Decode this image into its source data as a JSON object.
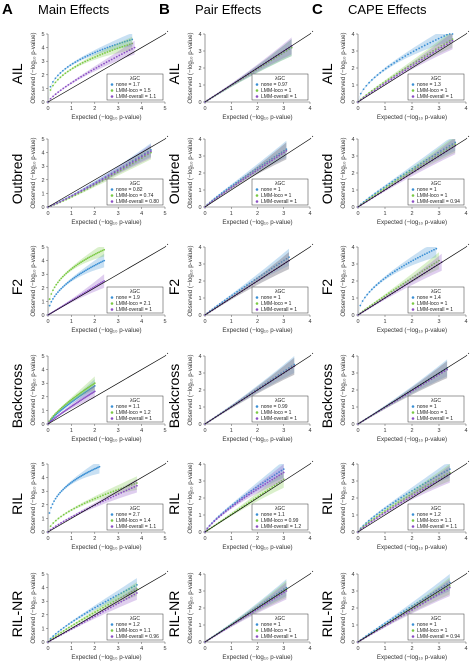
{
  "columns": [
    {
      "letter": "A",
      "title": "Main Effects"
    },
    {
      "letter": "B",
      "title": "Pair Effects"
    },
    {
      "letter": "C",
      "title": "CAPE Effects"
    }
  ],
  "rows": [
    "AIL",
    "Outbred",
    "F2",
    "Backcross",
    "RIL",
    "RIL-NR"
  ],
  "x_label": "Expected (−log₁₀ p-value)",
  "y_label": "Observed (−log₁₀ p-value)",
  "legend_title": "λGC",
  "colors": {
    "none": "#3a8fd4",
    "lmm_loco": "#7ac943",
    "lmm_overall": "#8b4fc4",
    "diag": "#000000",
    "frame": "#555555"
  },
  "chart_data": [
    {
      "type": "scatter",
      "column": "Main Effects",
      "row": "AIL",
      "xlim": [
        0,
        5
      ],
      "ylim": [
        0,
        5
      ],
      "series": [
        {
          "name": "none",
          "lambda": "1.7",
          "max_x": 3.6,
          "max_y": 4.6,
          "shape": 0.4
        },
        {
          "name": "LMM-loco",
          "lambda": "1.5",
          "max_x": 3.6,
          "max_y": 4.3,
          "shape": 0.45
        },
        {
          "name": "LMM-overall",
          "lambda": "1.1",
          "max_x": 3.7,
          "max_y": 4.0,
          "shape": 0.8
        }
      ]
    },
    {
      "type": "scatter",
      "column": "Pair Effects",
      "row": "AIL",
      "xlim": [
        0,
        4
      ],
      "ylim": [
        0,
        4
      ],
      "series": [
        {
          "name": "none",
          "lambda": "0.97",
          "max_x": 3.3,
          "max_y": 3.2,
          "shape": 1
        },
        {
          "name": "LMM-loco",
          "lambda": "1",
          "max_x": 3.3,
          "max_y": 3.2,
          "shape": 1
        },
        {
          "name": "LMM-overall",
          "lambda": "1",
          "max_x": 3.3,
          "max_y": 3.3,
          "shape": 1
        }
      ]
    },
    {
      "type": "scatter",
      "column": "CAPE Effects",
      "row": "AIL",
      "xlim": [
        0,
        4
      ],
      "ylim": [
        0,
        4
      ],
      "series": [
        {
          "name": "none",
          "lambda": "1.3",
          "max_x": 3.5,
          "max_y": 4.1,
          "shape": 0.6
        },
        {
          "name": "LMM-loco",
          "lambda": "1",
          "max_x": 3.5,
          "max_y": 3.7,
          "shape": 0.9
        },
        {
          "name": "LMM-overall",
          "lambda": "1",
          "max_x": 3.5,
          "max_y": 3.6,
          "shape": 0.95
        }
      ]
    },
    {
      "type": "scatter",
      "column": "Main Effects",
      "row": "Outbred",
      "xlim": [
        0,
        5
      ],
      "ylim": [
        0,
        5
      ],
      "series": [
        {
          "name": "none",
          "lambda": "0.82",
          "max_x": 4.4,
          "max_y": 4.2,
          "shape": 1.1
        },
        {
          "name": "LMM-loco",
          "lambda": "0.74",
          "max_x": 4.4,
          "max_y": 4.0,
          "shape": 1.15
        },
        {
          "name": "LMM-overall",
          "lambda": "0.80",
          "max_x": 4.4,
          "max_y": 4.1,
          "shape": 1.1
        }
      ]
    },
    {
      "type": "scatter",
      "column": "Pair Effects",
      "row": "Outbred",
      "xlim": [
        0,
        4
      ],
      "ylim": [
        0,
        4
      ],
      "series": [
        {
          "name": "none",
          "lambda": "1",
          "max_x": 3.1,
          "max_y": 3.4,
          "shape": 0.9
        },
        {
          "name": "LMM-loco",
          "lambda": "1",
          "max_x": 3.1,
          "max_y": 3.3,
          "shape": 0.95
        },
        {
          "name": "LMM-overall",
          "lambda": "1",
          "max_x": 3.1,
          "max_y": 3.3,
          "shape": 0.95
        }
      ]
    },
    {
      "type": "scatter",
      "column": "CAPE Effects",
      "row": "Outbred",
      "xlim": [
        0,
        4
      ],
      "ylim": [
        0,
        4
      ],
      "series": [
        {
          "name": "none",
          "lambda": "1",
          "max_x": 3.6,
          "max_y": 3.8,
          "shape": 0.9
        },
        {
          "name": "LMM-loco",
          "lambda": "1",
          "max_x": 3.6,
          "max_y": 3.7,
          "shape": 0.95
        },
        {
          "name": "LMM-overall",
          "lambda": "0.94",
          "max_x": 3.6,
          "max_y": 3.6,
          "shape": 1
        }
      ]
    },
    {
      "type": "scatter",
      "column": "Main Effects",
      "row": "F2",
      "xlim": [
        0,
        5
      ],
      "ylim": [
        0,
        5
      ],
      "series": [
        {
          "name": "none",
          "lambda": "1.9",
          "max_x": 2.4,
          "max_y": 4.0,
          "shape": 0.5
        },
        {
          "name": "LMM-loco",
          "lambda": "2.1",
          "max_x": 2.4,
          "max_y": 4.8,
          "shape": 0.4
        },
        {
          "name": "LMM-overall",
          "lambda": "1",
          "max_x": 2.4,
          "max_y": 2.5,
          "shape": 1
        }
      ]
    },
    {
      "type": "scatter",
      "column": "Pair Effects",
      "row": "F2",
      "xlim": [
        0,
        4
      ],
      "ylim": [
        0,
        4
      ],
      "series": [
        {
          "name": "none",
          "lambda": "1",
          "max_x": 3.2,
          "max_y": 3.4,
          "shape": 0.95
        },
        {
          "name": "LMM-loco",
          "lambda": "1",
          "max_x": 3.2,
          "max_y": 3.2,
          "shape": 1
        },
        {
          "name": "LMM-overall",
          "lambda": "1",
          "max_x": 3.2,
          "max_y": 3.2,
          "shape": 1
        }
      ]
    },
    {
      "type": "scatter",
      "column": "CAPE Effects",
      "row": "F2",
      "xlim": [
        0,
        4
      ],
      "ylim": [
        0,
        4
      ],
      "series": [
        {
          "name": "none",
          "lambda": "1.4",
          "max_x": 2.9,
          "max_y": 3.9,
          "shape": 0.55
        },
        {
          "name": "LMM-loco",
          "lambda": "1",
          "max_x": 3.0,
          "max_y": 3.2,
          "shape": 0.95
        },
        {
          "name": "LMM-overall",
          "lambda": "1",
          "max_x": 3.1,
          "max_y": 3.1,
          "shape": 1
        }
      ]
    },
    {
      "type": "scatter",
      "column": "Main Effects",
      "row": "Backcross",
      "xlim": [
        0,
        5
      ],
      "ylim": [
        0,
        5
      ],
      "series": [
        {
          "name": "none",
          "lambda": "1.1",
          "max_x": 2.0,
          "max_y": 2.8,
          "shape": 0.8
        },
        {
          "name": "LMM-loco",
          "lambda": "1.2",
          "max_x": 2.0,
          "max_y": 3.0,
          "shape": 0.75
        },
        {
          "name": "LMM-overall",
          "lambda": "1",
          "max_x": 2.0,
          "max_y": 2.4,
          "shape": 0.9
        }
      ]
    },
    {
      "type": "scatter",
      "column": "Pair Effects",
      "row": "Backcross",
      "xlim": [
        0,
        4
      ],
      "ylim": [
        0,
        4
      ],
      "series": [
        {
          "name": "none",
          "lambda": "0.99",
          "max_x": 3.4,
          "max_y": 3.5,
          "shape": 1
        },
        {
          "name": "LMM-loco",
          "lambda": "1",
          "max_x": 3.4,
          "max_y": 3.4,
          "shape": 1
        },
        {
          "name": "LMM-overall",
          "lambda": "1",
          "max_x": 3.4,
          "max_y": 3.4,
          "shape": 1
        }
      ]
    },
    {
      "type": "scatter",
      "column": "CAPE Effects",
      "row": "Backcross",
      "xlim": [
        0,
        4
      ],
      "ylim": [
        0,
        4
      ],
      "series": [
        {
          "name": "none",
          "lambda": "1",
          "max_x": 3.3,
          "max_y": 3.3,
          "shape": 1
        },
        {
          "name": "LMM-loco",
          "lambda": "1",
          "max_x": 3.3,
          "max_y": 3.2,
          "shape": 1
        },
        {
          "name": "LMM-overall",
          "lambda": "1",
          "max_x": 3.3,
          "max_y": 3.2,
          "shape": 1
        }
      ]
    },
    {
      "type": "scatter",
      "column": "Main Effects",
      "row": "RIL",
      "xlim": [
        0,
        5
      ],
      "ylim": [
        0,
        5
      ],
      "series": [
        {
          "name": "none",
          "lambda": "2.7",
          "max_x": 2.2,
          "max_y": 4.8,
          "shape": 0.35
        },
        {
          "name": "LMM-loco",
          "lambda": "1.4",
          "max_x": 3.8,
          "max_y": 3.6,
          "shape": 0.6
        },
        {
          "name": "LMM-overall",
          "lambda": "1.1",
          "max_x": 3.8,
          "max_y": 3.4,
          "shape": 0.85
        }
      ]
    },
    {
      "type": "scatter",
      "column": "Pair Effects",
      "row": "RIL",
      "xlim": [
        0,
        4
      ],
      "ylim": [
        0,
        4
      ],
      "series": [
        {
          "name": "none",
          "lambda": "1.1",
          "max_x": 3.0,
          "max_y": 3.7,
          "shape": 0.8
        },
        {
          "name": "LMM-loco",
          "lambda": "0.99",
          "max_x": 3.0,
          "max_y": 3.1,
          "shape": 1
        },
        {
          "name": "LMM-overall",
          "lambda": "1.2",
          "max_x": 3.0,
          "max_y": 3.5,
          "shape": 0.8
        }
      ]
    },
    {
      "type": "scatter",
      "column": "CAPE Effects",
      "row": "RIL",
      "xlim": [
        0,
        4
      ],
      "ylim": [
        0,
        4
      ],
      "series": [
        {
          "name": "none",
          "lambda": "1.2",
          "max_x": 3.4,
          "max_y": 3.7,
          "shape": 0.8
        },
        {
          "name": "LMM-loco",
          "lambda": "1.1",
          "max_x": 3.4,
          "max_y": 3.5,
          "shape": 0.85
        },
        {
          "name": "LMM-overall",
          "lambda": "1.1",
          "max_x": 3.4,
          "max_y": 3.4,
          "shape": 0.9
        }
      ]
    },
    {
      "type": "scatter",
      "column": "Main Effects",
      "row": "RIL-NR",
      "xlim": [
        0,
        5
      ],
      "ylim": [
        0,
        5
      ],
      "series": [
        {
          "name": "none",
          "lambda": "1.2",
          "max_x": 3.8,
          "max_y": 4.2,
          "shape": 0.8
        },
        {
          "name": "LMM-loco",
          "lambda": "1.1",
          "max_x": 3.8,
          "max_y": 3.9,
          "shape": 0.9
        },
        {
          "name": "LMM-overall",
          "lambda": "0.96",
          "max_x": 3.8,
          "max_y": 3.6,
          "shape": 1
        }
      ]
    },
    {
      "type": "scatter",
      "column": "Pair Effects",
      "row": "RIL-NR",
      "xlim": [
        0,
        4
      ],
      "ylim": [
        0,
        4
      ],
      "series": [
        {
          "name": "none",
          "lambda": "1",
          "max_x": 3.1,
          "max_y": 3.2,
          "shape": 1
        },
        {
          "name": "LMM-loco",
          "lambda": "1",
          "max_x": 3.1,
          "max_y": 3.1,
          "shape": 1
        },
        {
          "name": "LMM-overall",
          "lambda": "1",
          "max_x": 3.1,
          "max_y": 3.0,
          "shape": 1
        }
      ]
    },
    {
      "type": "scatter",
      "column": "CAPE Effects",
      "row": "RIL-NR",
      "xlim": [
        0,
        4
      ],
      "ylim": [
        0,
        4
      ],
      "series": [
        {
          "name": "none",
          "lambda": "1",
          "max_x": 3.4,
          "max_y": 3.5,
          "shape": 0.95
        },
        {
          "name": "LMM-loco",
          "lambda": "1",
          "max_x": 3.4,
          "max_y": 3.3,
          "shape": 1
        },
        {
          "name": "LMM-overall",
          "lambda": "0.94",
          "max_x": 3.4,
          "max_y": 3.2,
          "shape": 1
        }
      ]
    }
  ]
}
